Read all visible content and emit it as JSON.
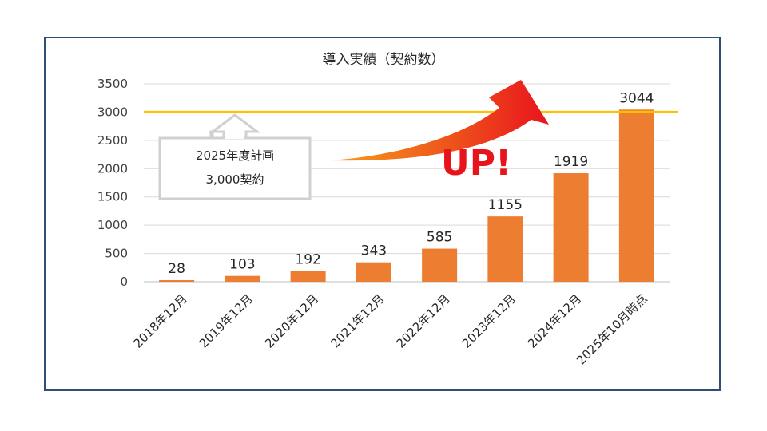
{
  "chart_data": {
    "type": "bar",
    "title": "導入実績（契約数）",
    "categories": [
      "2018年12月",
      "2019年12月",
      "2020年12月",
      "2021年12月",
      "2022年12月",
      "2023年12月",
      "2024年12月",
      "2025年10月時点"
    ],
    "values": [
      28,
      103,
      192,
      343,
      585,
      1155,
      1919,
      3044
    ],
    "ylim": [
      0,
      3500
    ],
    "yticks": [
      0,
      500,
      1000,
      1500,
      2000,
      2500,
      3000,
      3500
    ],
    "grid": true,
    "data_labels": true,
    "reference_line": {
      "value": 3000,
      "color": "#FFC000"
    },
    "bar_color": "#ED7D31"
  },
  "callout": {
    "line1": "2025年度計画",
    "line2": "3,000契約"
  },
  "banner": {
    "text": "UP!",
    "color": "#E8141C"
  },
  "colors": {
    "frame": "#2F4E75",
    "arrow_start": "#F6A01A",
    "arrow_end": "#E8141C"
  }
}
